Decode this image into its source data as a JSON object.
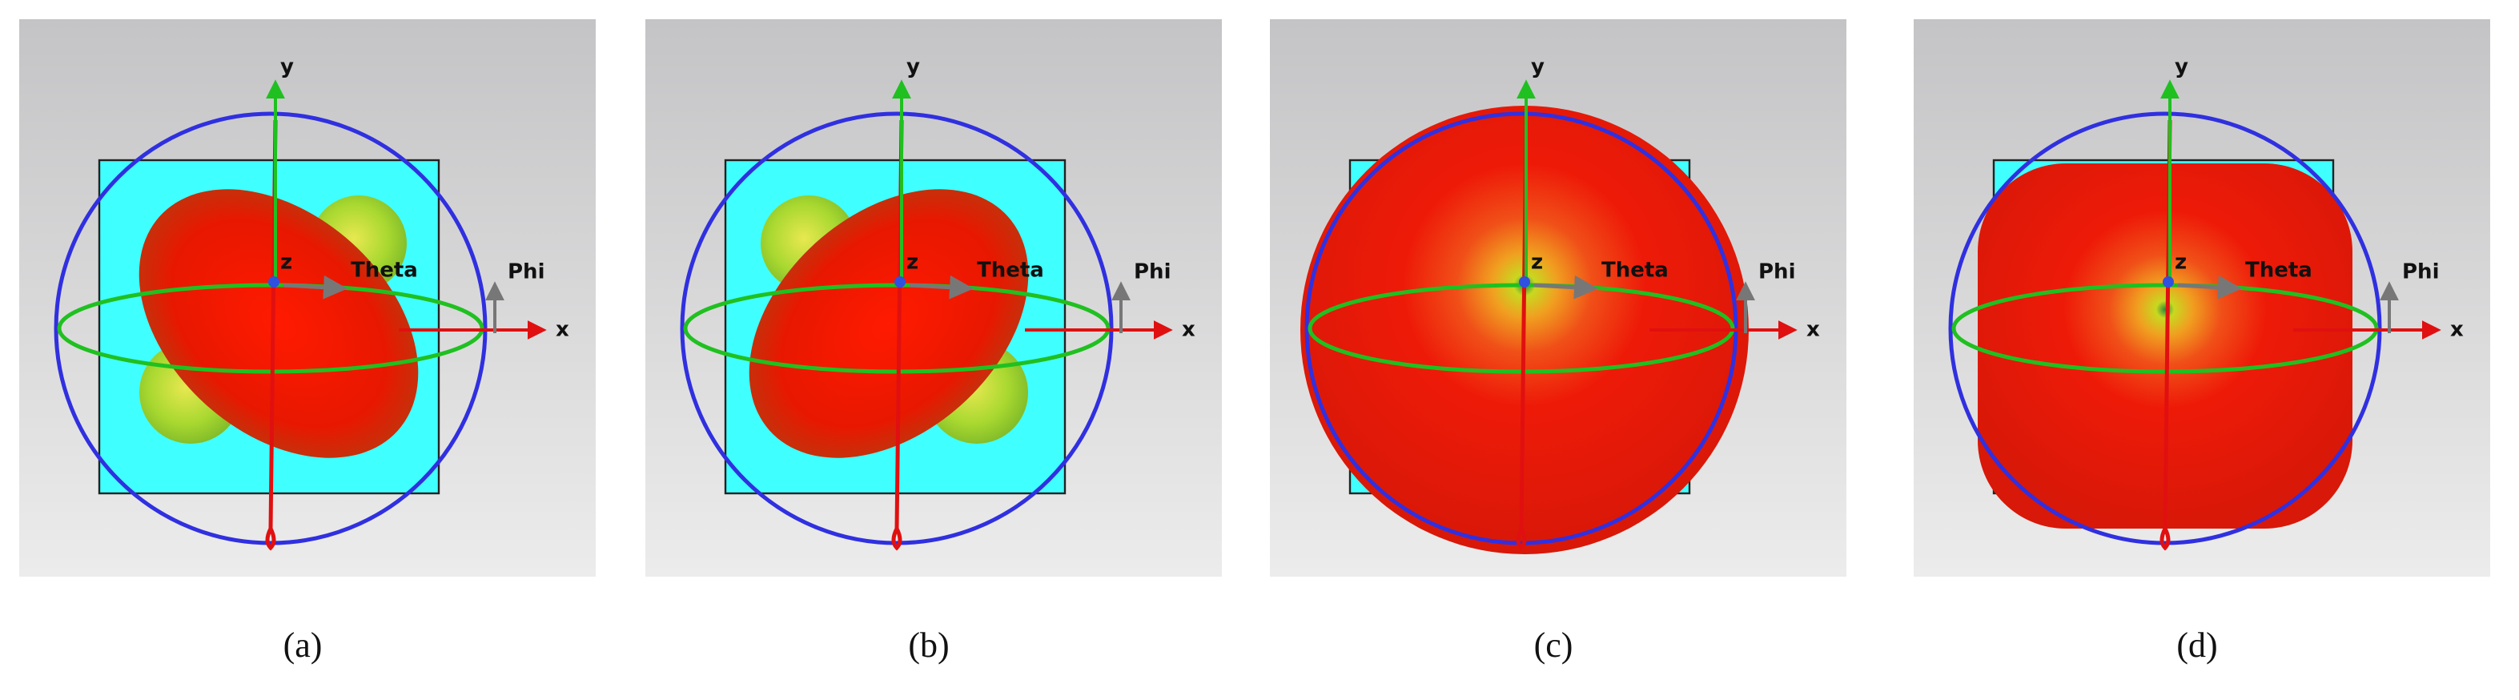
{
  "panels": [
    {
      "caption": "(a)",
      "axes": {
        "y": "y",
        "x": "x",
        "z": "z",
        "theta": "Theta",
        "phi": "Phi"
      }
    },
    {
      "caption": "(b)",
      "axes": {
        "y": "y",
        "x": "x",
        "z": "z",
        "theta": "Theta",
        "phi": "Phi"
      }
    },
    {
      "caption": "(c)",
      "axes": {
        "y": "y",
        "x": "x",
        "z": "z",
        "theta": "Theta",
        "phi": "Phi"
      }
    },
    {
      "caption": "(d)",
      "axes": {
        "y": "y",
        "x": "x",
        "z": "z",
        "theta": "Theta",
        "phi": "Phi"
      }
    }
  ]
}
